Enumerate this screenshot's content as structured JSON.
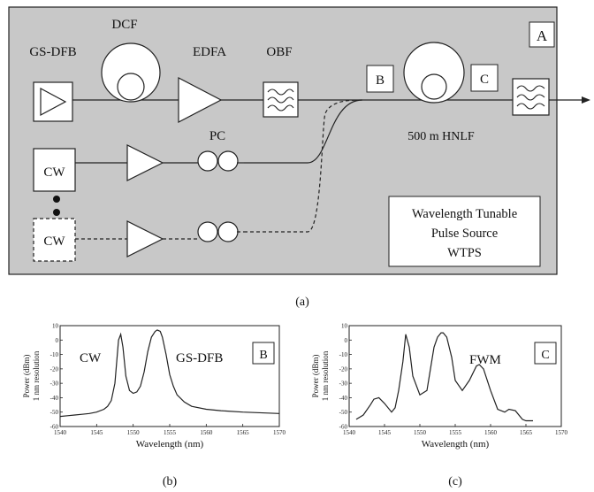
{
  "diagram": {
    "panel_label": "A",
    "components": {
      "gs_dfb": "GS-DFB",
      "dcf": "DCF",
      "edfa": "EDFA",
      "obf": "OBF",
      "pc": "PC",
      "cw1": "CW",
      "cw2": "CW",
      "hnlf": "500 m HNLF",
      "point_b": "B",
      "point_c": "C"
    },
    "legend_lines": [
      "Wavelength Tunable",
      "Pulse Source",
      "WTPS"
    ],
    "caption": "(a)",
    "colors": {
      "panel_fill": "#c8c8c8",
      "stroke": "#222222",
      "box_fill": "#ffffff"
    }
  },
  "charts": {
    "b": {
      "caption": "(b)",
      "marker": "B",
      "labels": [
        "CW",
        "GS-DFB"
      ],
      "ylabel_lines": [
        "Power (dBm)",
        "1 nm resolution"
      ],
      "xlabel": "Wavelength (nm)"
    },
    "c": {
      "caption": "(c)",
      "marker": "C",
      "labels": [
        "FWM"
      ],
      "ylabel_lines": [
        "Power (dBm)",
        "1 nm resolution"
      ],
      "xlabel": "Wavelength (nm)"
    }
  },
  "chart_data": [
    {
      "type": "line",
      "xlim": [
        1540,
        1570
      ],
      "ylim": [
        -60,
        10
      ],
      "xticks": [
        "1540",
        "1545",
        "1550",
        "1555",
        "1560",
        "1565",
        "1570"
      ],
      "yticks": [
        "10",
        "0",
        "-10",
        "-20",
        "-30",
        "-40",
        "-50",
        "-60"
      ],
      "x": [
        1540,
        1541,
        1542,
        1543,
        1544,
        1545,
        1546,
        1546.5,
        1547,
        1547.5,
        1548,
        1548.3,
        1548.6,
        1549,
        1549.5,
        1550,
        1550.5,
        1551,
        1551.5,
        1552,
        1552.5,
        1553,
        1553.3,
        1553.7,
        1554,
        1554.5,
        1555,
        1555.5,
        1556,
        1557,
        1558,
        1560,
        1562,
        1565,
        1570
      ],
      "values": [
        -53,
        -52.5,
        -52,
        -51.5,
        -51,
        -50,
        -48,
        -46,
        -42,
        -30,
        0,
        4,
        -5,
        -25,
        -35,
        -37,
        -36,
        -32,
        -22,
        -8,
        2,
        6,
        7,
        6,
        2,
        -10,
        -24,
        -32,
        -38,
        -43,
        -46,
        -48,
        -49,
        -50,
        -51
      ]
    },
    {
      "type": "line",
      "xlim": [
        1540,
        1570
      ],
      "ylim": [
        -60,
        10
      ],
      "xticks": [
        "1540",
        "1545",
        "1550",
        "1555",
        "1560",
        "1565",
        "1570"
      ],
      "yticks": [
        "10",
        "0",
        "-10",
        "-20",
        "-30",
        "-40",
        "-50",
        "-60"
      ],
      "x": [
        1541,
        1542,
        1543,
        1543.5,
        1544.2,
        1545,
        1546,
        1546.5,
        1547,
        1547.6,
        1548,
        1548.5,
        1549,
        1550,
        1551,
        1551.5,
        1552,
        1552.5,
        1553,
        1553.3,
        1553.8,
        1554.5,
        1555,
        1556,
        1557,
        1558,
        1558.4,
        1559,
        1560,
        1561,
        1562,
        1562.6,
        1563.5,
        1564.5,
        1565,
        1566
      ],
      "values": [
        -55,
        -52,
        -45,
        -41,
        -40,
        -44,
        -50,
        -47,
        -35,
        -15,
        4,
        -5,
        -25,
        -38,
        -35,
        -20,
        -5,
        2,
        5,
        5,
        2,
        -12,
        -28,
        -35,
        -28,
        -18,
        -17,
        -20,
        -35,
        -48,
        -50,
        -48,
        -49,
        -55,
        -56,
        -56
      ]
    }
  ]
}
